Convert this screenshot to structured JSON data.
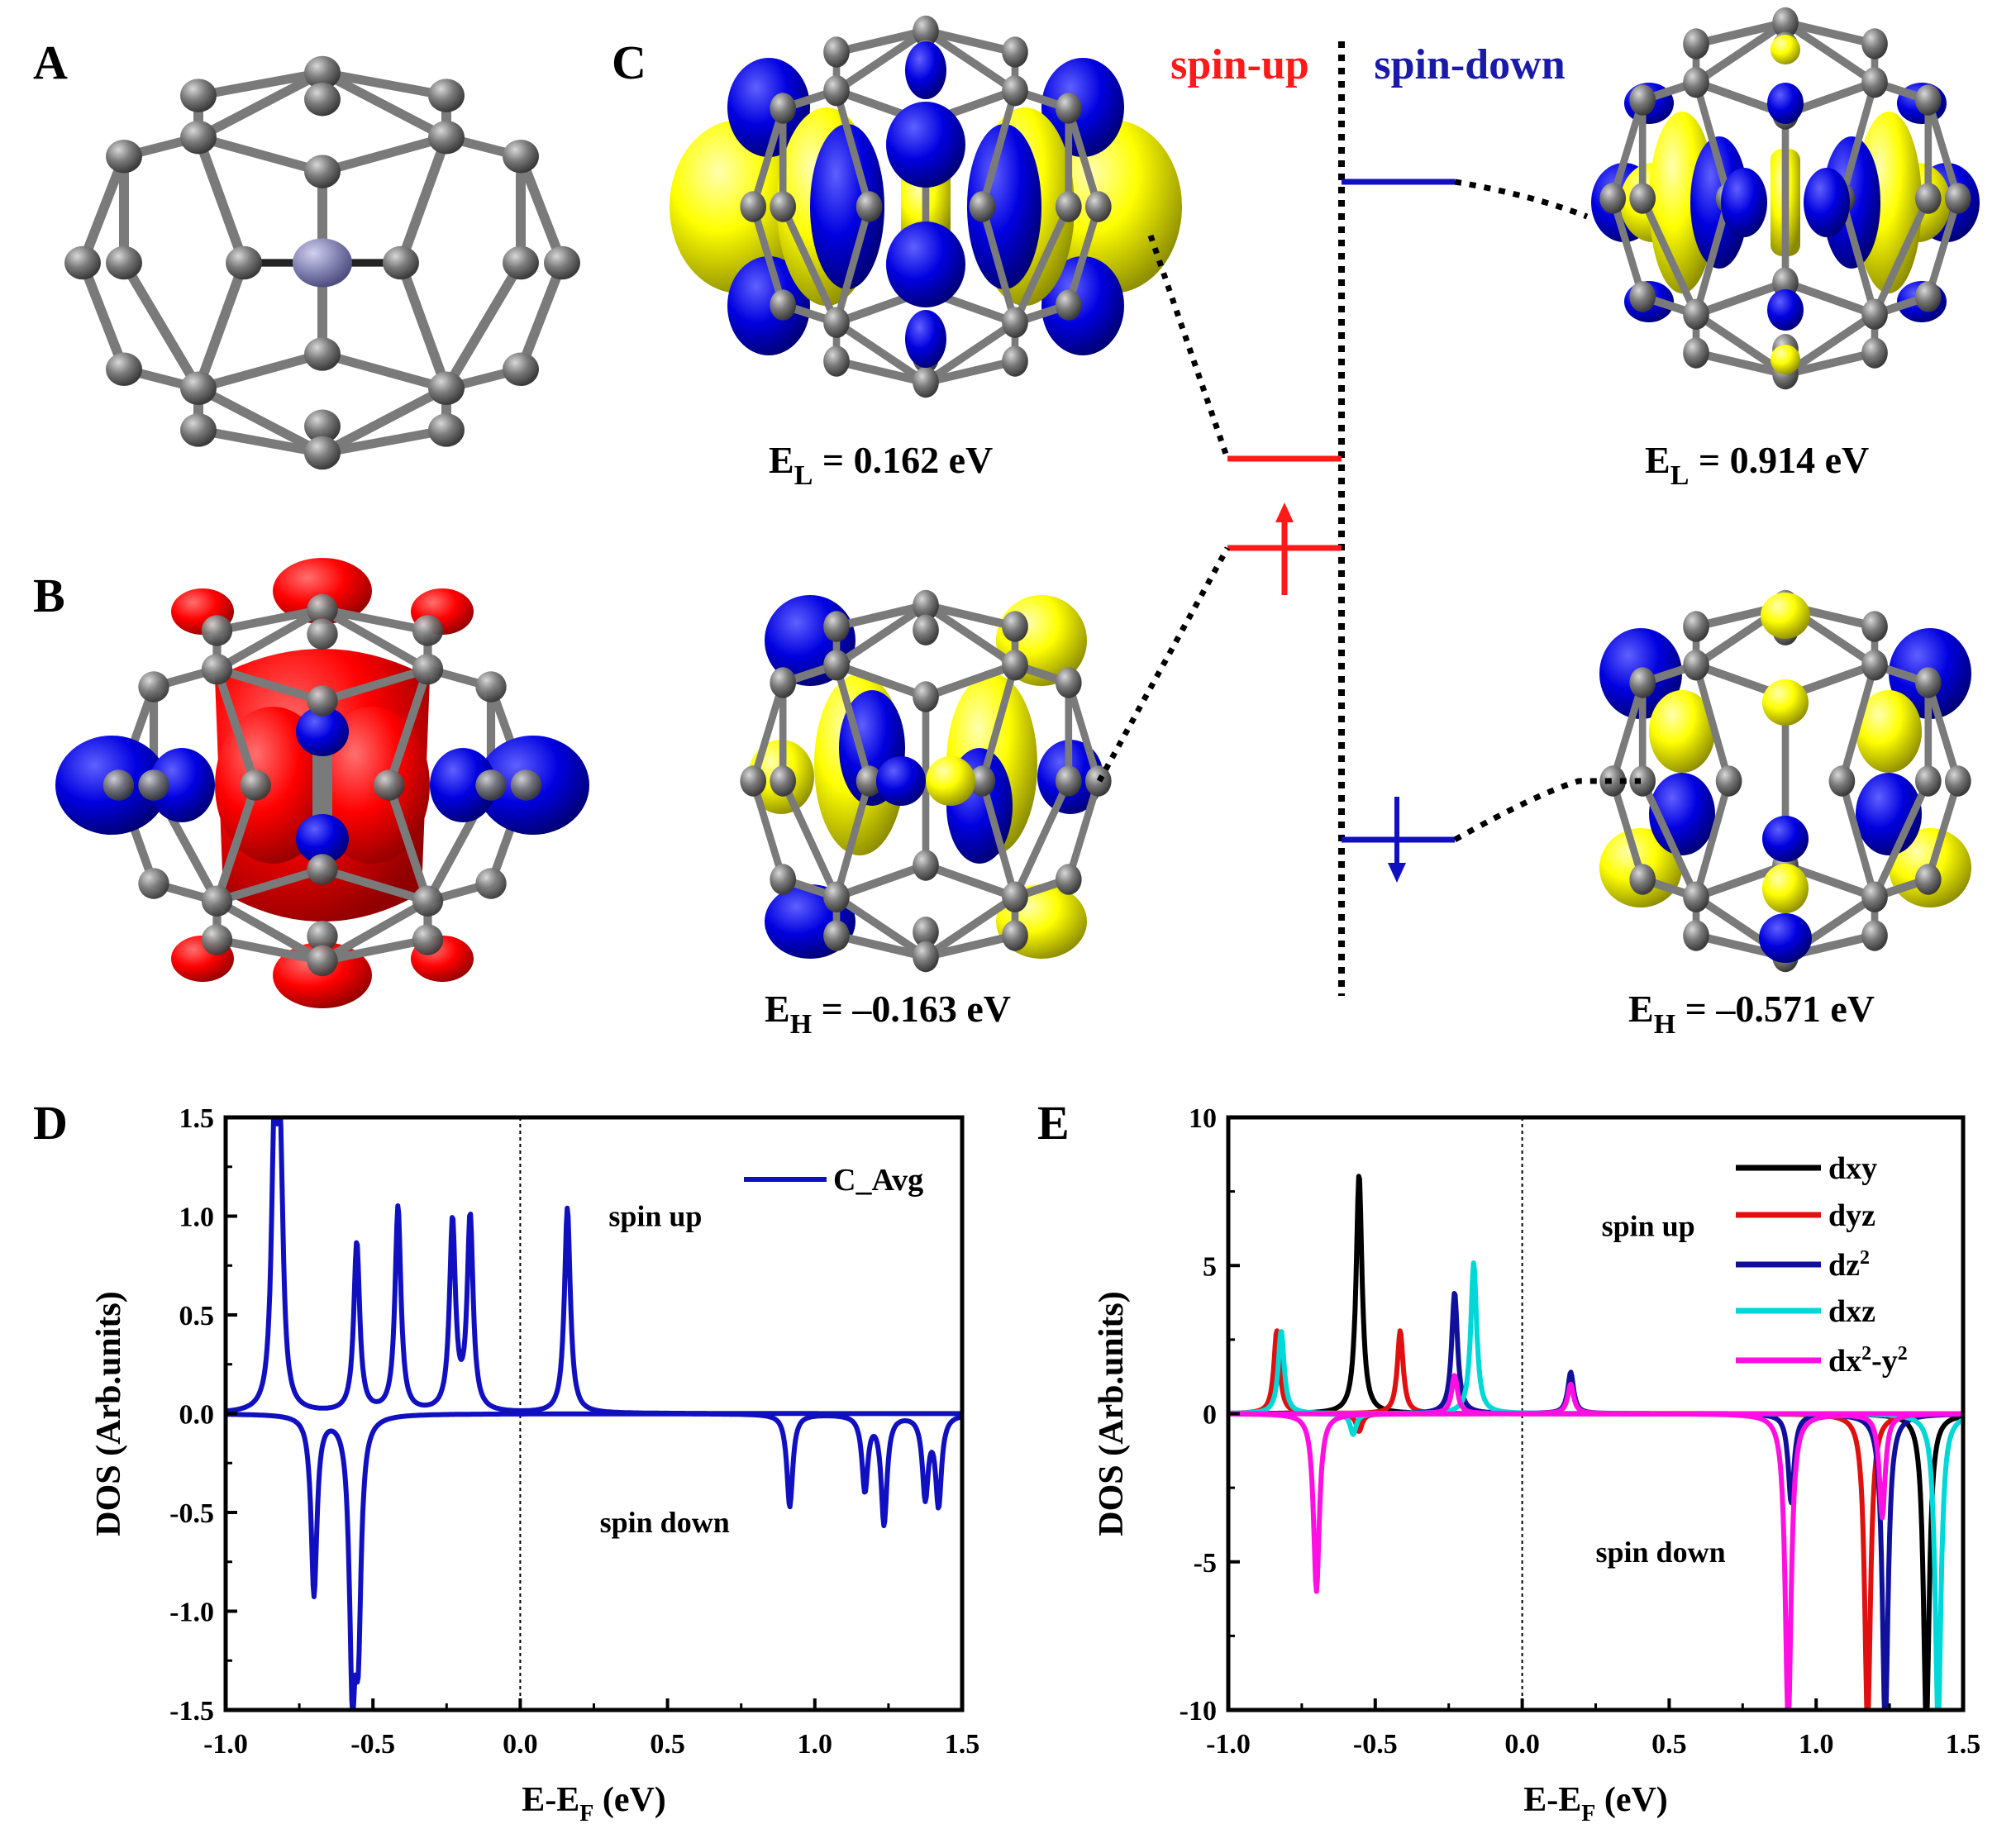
{
  "panels": {
    "A": {
      "letter": "A",
      "description": "Cage structure: carbon cage with central metal dimer"
    },
    "B": {
      "letter": "B",
      "description": "Spin density isosurface (red/blue)"
    },
    "C": {
      "letter": "C",
      "spin_up_label": "spin-up",
      "spin_down_label": "spin-down",
      "spin_up_color": "#ff1a1a",
      "spin_down_color": "#1a1aaa",
      "orbitals": {
        "up_lumo": {
          "sub": "L",
          "prefix": "E",
          "value": " = 0.162 eV"
        },
        "up_homo": {
          "sub": "H",
          "prefix": "E",
          "value": " = –0.163 eV"
        },
        "down_lumo": {
          "sub": "L",
          "prefix": "E",
          "value": " = 0.914 eV"
        },
        "down_homo": {
          "sub": "H",
          "prefix": "E",
          "value": " = –0.571 eV"
        }
      },
      "isosurface_colors": {
        "positive": "#ffff00",
        "negative": "#0000e0",
        "atom": "#808080"
      }
    },
    "D": {
      "letter": "D"
    },
    "E": {
      "letter": "E"
    }
  },
  "chart_data": [
    {
      "id": "D",
      "type": "line",
      "title": "",
      "xlabel": "E-E_F (eV)",
      "ylabel": "DOS (Arb.units)",
      "xlim": [
        -1.0,
        1.5
      ],
      "ylim": [
        -1.5,
        1.5
      ],
      "xticks": [
        "-1.0",
        "-0.5",
        "0.0",
        "0.5",
        "1.0",
        "1.5"
      ],
      "yticks": [
        "1.5",
        "1.0",
        "0.5",
        "0.0",
        "-0.5",
        "-1.0",
        "-1.5"
      ],
      "grid": false,
      "fermi_line_x": 0.0,
      "annotations": [
        {
          "text": "spin up",
          "x": 0.3,
          "y": 0.95
        },
        {
          "text": "spin down",
          "x": 0.27,
          "y": -0.6
        }
      ],
      "legend_position": "upper right",
      "series": [
        {
          "name": "C_Avg",
          "color": "#1010c0",
          "spin_up_peaks": [
            [
              -0.835,
              1.26
            ],
            [
              -0.815,
              1.22
            ],
            [
              -0.555,
              0.86
            ],
            [
              -0.415,
              1.04
            ],
            [
              -0.23,
              0.96
            ],
            [
              -0.17,
              0.98
            ],
            [
              0.16,
              1.04
            ]
          ],
          "spin_down_peaks": [
            [
              -0.7,
              -0.91
            ],
            [
              -0.57,
              -1.24
            ],
            [
              -0.55,
              -1.0
            ],
            [
              0.915,
              -0.47
            ],
            [
              1.17,
              -0.38
            ],
            [
              1.235,
              -0.55
            ],
            [
              1.375,
              -0.41
            ],
            [
              1.42,
              -0.45
            ]
          ]
        }
      ]
    },
    {
      "id": "E",
      "type": "line",
      "title": "",
      "xlabel": "E-E_F (eV)",
      "ylabel": "DOS (Arb.units)",
      "xlim": [
        -1.0,
        1.5
      ],
      "ylim": [
        -10,
        10
      ],
      "xticks": [
        "-1.0",
        "-0.5",
        "0.0",
        "0.5",
        "1.0",
        "1.5"
      ],
      "yticks": [
        "10",
        "5",
        "0",
        "-5",
        "-10"
      ],
      "grid": false,
      "fermi_line_x": 0.0,
      "annotations": [
        {
          "text": "spin up",
          "x": 0.27,
          "y": 6.0
        },
        {
          "text": "spin down",
          "x": 0.25,
          "y": -5.0
        }
      ],
      "legend_position": "upper right",
      "series": [
        {
          "name": "dxy",
          "label_html": "dxy",
          "color": "#000000",
          "spin_up_peaks": [
            [
              -0.555,
              8.1
            ]
          ],
          "spin_down_peaks": [
            [
              1.375,
              -10.5
            ]
          ]
        },
        {
          "name": "dyz",
          "label_html": "dyz",
          "color": "#e01010",
          "spin_up_peaks": [
            [
              -0.835,
              2.8
            ],
            [
              -0.415,
              2.8
            ]
          ],
          "spin_down_peaks": [
            [
              -0.555,
              -0.6
            ],
            [
              1.175,
              -10.5
            ]
          ]
        },
        {
          "name": "dz2",
          "label_html": "dz<tspan dy='-14' font-size='24'>2</tspan>",
          "color": "#10109a",
          "spin_up_peaks": [
            [
              -0.23,
              4.1
            ],
            [
              0.165,
              1.4
            ]
          ],
          "spin_down_peaks": [
            [
              0.915,
              -3.0
            ],
            [
              1.235,
              -10.5
            ]
          ]
        },
        {
          "name": "dxz",
          "label_html": "dxz",
          "color": "#00d8d8",
          "spin_up_peaks": [
            [
              -0.82,
              2.8
            ],
            [
              -0.165,
              5.1
            ]
          ],
          "spin_down_peaks": [
            [
              -0.575,
              -0.7
            ],
            [
              1.415,
              -10.5
            ]
          ]
        },
        {
          "name": "dx2-y2",
          "label_html": "dx<tspan dy='-14' font-size='24'>2</tspan><tspan dy='14'>-y</tspan><tspan dy='-14' font-size='24'>2</tspan>",
          "color": "#ff10e0",
          "spin_up_peaks": [
            [
              -0.23,
              1.3
            ],
            [
              0.165,
              1.0
            ]
          ],
          "spin_down_peaks": [
            [
              -0.7,
              -6.0
            ],
            [
              0.905,
              -10.5
            ],
            [
              1.225,
              -3.5
            ]
          ]
        }
      ]
    }
  ]
}
